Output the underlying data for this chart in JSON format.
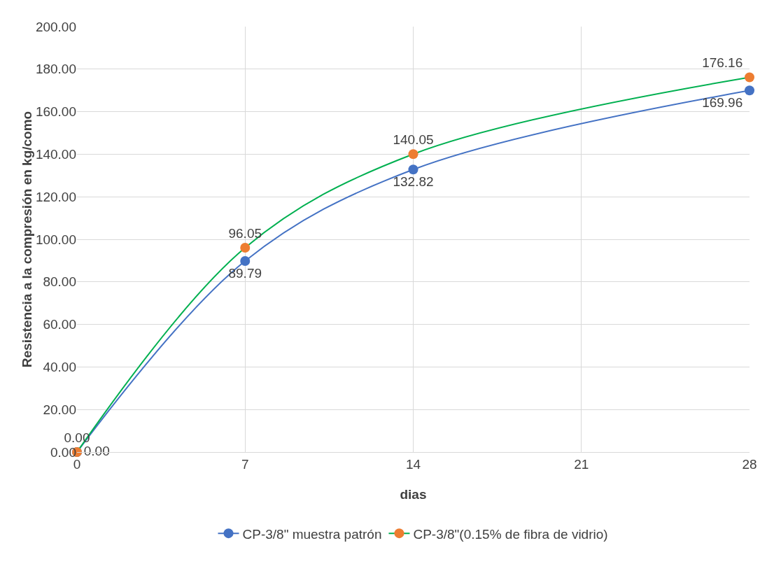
{
  "chart_data": {
    "type": "line",
    "xlabel": "dias",
    "ylabel": "Resistencia a la compresión en kg/como",
    "x": [
      0,
      7,
      14,
      28
    ],
    "series": [
      {
        "name": "CP-3/8\" muestra patrón",
        "color": "#4472c4",
        "colors": [
          "#4472c4",
          "#4472c4",
          "#4472c4",
          "#4472c4"
        ],
        "values": [
          0,
          89.79,
          132.82,
          169.96
        ],
        "value_labels": [
          "0.00",
          "89.79",
          "132.82",
          "169.96"
        ]
      },
      {
        "name": "CP-3/8\"(0.15% de fibra de vidrio)",
        "color": "#00b050",
        "colors": [
          "#ed7d31",
          "#ed7d31",
          "#ed7d31",
          "#ed7d31"
        ],
        "values": [
          0,
          96.05,
          140.05,
          176.16
        ],
        "value_labels": [
          "0.00",
          "96.05",
          "140.05",
          "176.16"
        ]
      }
    ],
    "xlim": [
      0,
      28
    ],
    "xticks": [
      0,
      7,
      14,
      21,
      28
    ],
    "ylim": [
      0,
      200
    ],
    "yticks": [
      {
        "value": 0,
        "label": "0.00"
      },
      {
        "value": 20,
        "label": "20.00"
      },
      {
        "value": 40,
        "label": "40.00"
      },
      {
        "value": 60,
        "label": "60.00"
      },
      {
        "value": 80,
        "label": "80.00"
      },
      {
        "value": 100,
        "label": "100.00"
      },
      {
        "value": 120,
        "label": "120.00"
      },
      {
        "value": 140,
        "label": "140.00"
      },
      {
        "value": 160,
        "label": "160.00"
      },
      {
        "value": 180,
        "label": "180.00"
      },
      {
        "value": 200,
        "label": "200.00"
      }
    ],
    "grid": true,
    "legend": "bottom",
    "marker": "circle",
    "line_style": "solid"
  }
}
